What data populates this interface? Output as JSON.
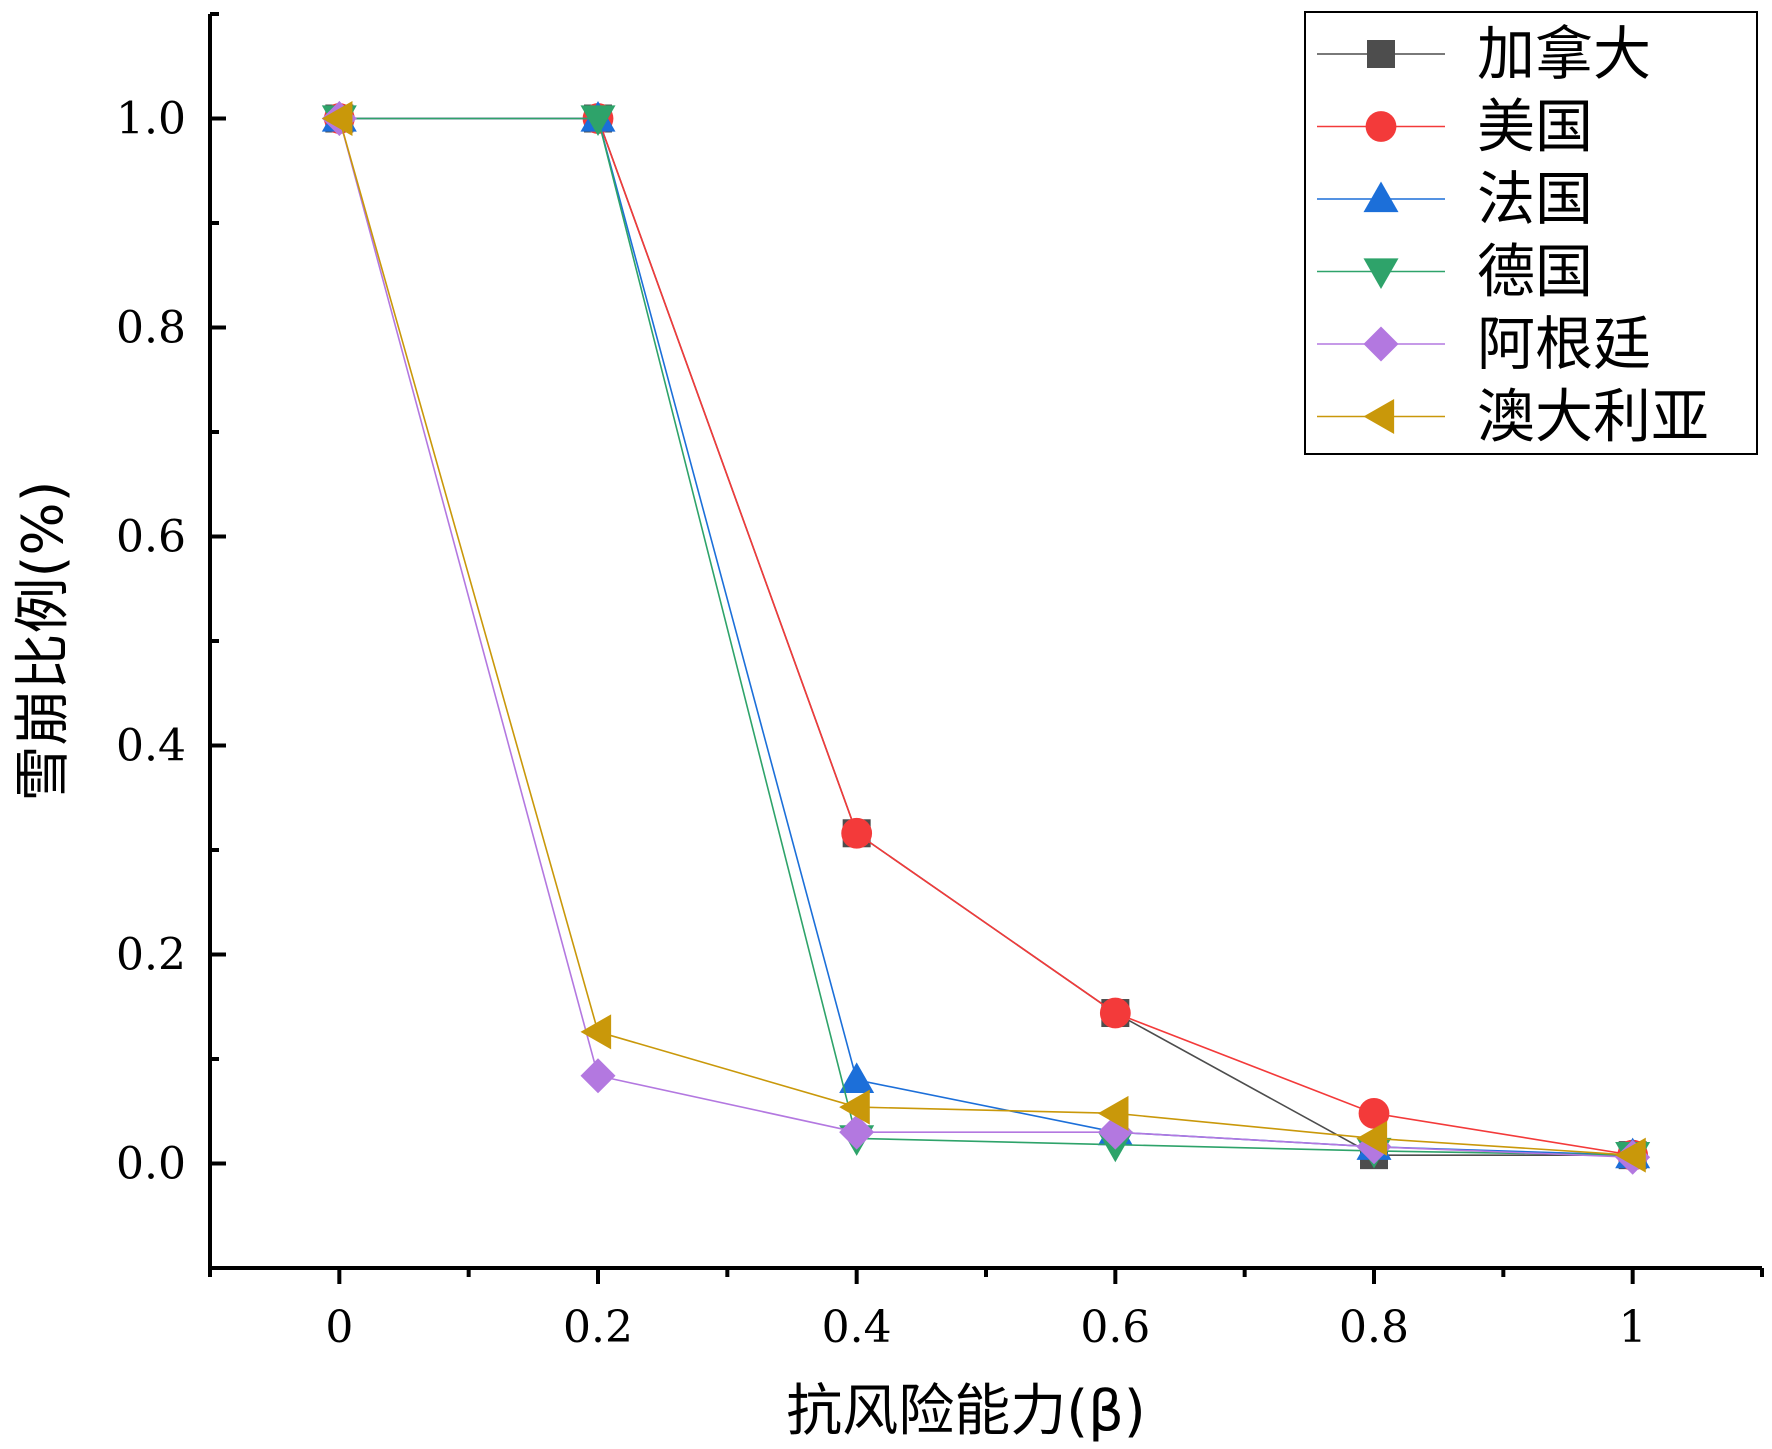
{
  "chart_data": {
    "type": "line",
    "title": "",
    "xlabel": "抗风险能力(β)",
    "ylabel": "雪崩比例(%)",
    "xlim": [
      -0.1,
      1.1
    ],
    "ylim": [
      -0.1,
      1.1
    ],
    "x": [
      0,
      0.2,
      0.4,
      0.6,
      0.8,
      1
    ],
    "x_tick_labels": [
      "0",
      "0.2",
      "0.4",
      "0.6",
      "0.8",
      "1"
    ],
    "y_ticks": [
      0.0,
      0.2,
      0.4,
      0.6,
      0.8,
      1.0
    ],
    "y_tick_labels": [
      "0.0",
      "0.2",
      "0.4",
      "0.6",
      "0.8",
      "1.0"
    ],
    "grid": false,
    "legend_position": "top-right",
    "series": [
      {
        "name": "加拿大",
        "color": "#4d4d4d",
        "marker": "square",
        "values": [
          1.0,
          1.0,
          0.316,
          0.144,
          0.008,
          0.008
        ]
      },
      {
        "name": "美国",
        "color": "#f33a3a",
        "marker": "circle",
        "values": [
          1.0,
          1.0,
          0.316,
          0.144,
          0.048,
          0.008
        ]
      },
      {
        "name": "法国",
        "color": "#1c6fd9",
        "marker": "triangle-up",
        "values": [
          1.0,
          1.0,
          0.08,
          0.03,
          0.016,
          0.008
        ]
      },
      {
        "name": "德国",
        "color": "#2ea36a",
        "marker": "triangle-down",
        "values": [
          1.0,
          1.0,
          0.024,
          0.018,
          0.012,
          0.008
        ]
      },
      {
        "name": "阿根廷",
        "color": "#b378e0",
        "marker": "diamond",
        "values": [
          1.0,
          0.084,
          0.03,
          0.03,
          0.016,
          0.006
        ]
      },
      {
        "name": "澳大利亚",
        "color": "#c9980a",
        "marker": "triangle-left",
        "values": [
          1.0,
          0.126,
          0.054,
          0.048,
          0.024,
          0.008
        ]
      }
    ]
  }
}
